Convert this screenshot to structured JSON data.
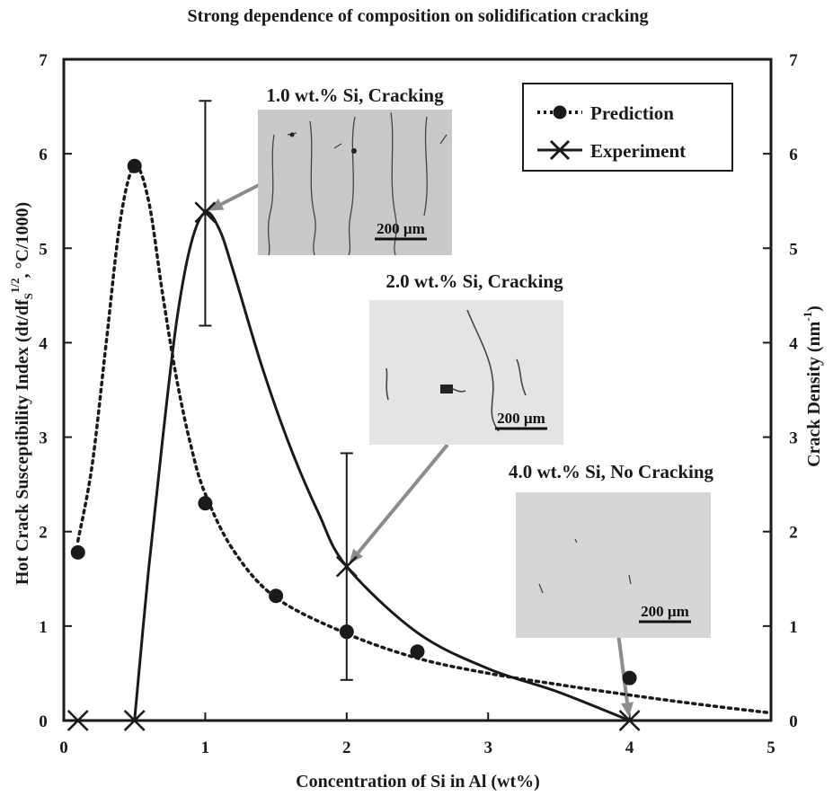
{
  "chart_data": {
    "type": "line",
    "title": "Strong dependence of composition on solidification cracking",
    "xlabel": "Concentration of Si in Al (wt%)",
    "ylabel_left": "Hot Crack Susceptibility Index (dt/df",
    "ylabel_left_sub": "S",
    "ylabel_left_sup": "1/2",
    "ylabel_left_tail": ", °C/1000)",
    "ylabel_right": "Crack Density (nm",
    "ylabel_right_sup": "-1",
    "ylabel_right_tail": ")",
    "xlim": [
      0,
      5
    ],
    "ylim": [
      0,
      7
    ],
    "y2lim": [
      0,
      7
    ],
    "x_ticks": [
      "0",
      "1",
      "2",
      "3",
      "4",
      "5"
    ],
    "y_ticks": [
      "0",
      "1",
      "2",
      "3",
      "4",
      "5",
      "6",
      "7"
    ],
    "y2_ticks": [
      "0",
      "1",
      "2",
      "3",
      "4",
      "5",
      "6",
      "7"
    ],
    "legend_position": "top-right",
    "series": [
      {
        "name": "Prediction",
        "style": "dotted",
        "marker": "circle",
        "axis": "left",
        "points": [
          {
            "x": 0.1,
            "y": 1.78
          },
          {
            "x": 0.5,
            "y": 5.87
          },
          {
            "x": 1.0,
            "y": 2.3
          },
          {
            "x": 1.5,
            "y": 1.32
          },
          {
            "x": 2.0,
            "y": 0.94
          },
          {
            "x": 2.5,
            "y": 0.73
          },
          {
            "x": 4.0,
            "y": 0.45
          }
        ],
        "curve": [
          {
            "x": 0.1,
            "y": 1.9
          },
          {
            "x": 0.2,
            "y": 2.7
          },
          {
            "x": 0.3,
            "y": 4.0
          },
          {
            "x": 0.4,
            "y": 5.3
          },
          {
            "x": 0.5,
            "y": 5.87
          },
          {
            "x": 0.6,
            "y": 5.5
          },
          {
            "x": 0.7,
            "y": 4.5
          },
          {
            "x": 0.8,
            "y": 3.6
          },
          {
            "x": 0.9,
            "y": 2.9
          },
          {
            "x": 1.0,
            "y": 2.4
          },
          {
            "x": 1.2,
            "y": 1.8
          },
          {
            "x": 1.5,
            "y": 1.3
          },
          {
            "x": 2.0,
            "y": 0.92
          },
          {
            "x": 2.5,
            "y": 0.66
          },
          {
            "x": 3.0,
            "y": 0.5
          },
          {
            "x": 3.5,
            "y": 0.38
          },
          {
            "x": 4.0,
            "y": 0.27
          },
          {
            "x": 4.5,
            "y": 0.17
          },
          {
            "x": 5.0,
            "y": 0.08
          }
        ]
      },
      {
        "name": "Experiment",
        "style": "solid",
        "marker": "x",
        "axis": "right",
        "points": [
          {
            "x": 0.1,
            "y": 0,
            "err": null
          },
          {
            "x": 0.5,
            "y": 0,
            "err": null
          },
          {
            "x": 1.0,
            "y": 5.38,
            "err_low": 4.18,
            "err_high": 6.56
          },
          {
            "x": 2.0,
            "y": 1.63,
            "err_low": 0.43,
            "err_high": 2.83
          },
          {
            "x": 4.0,
            "y": 0,
            "err": null
          }
        ],
        "curve": [
          {
            "x": 0.5,
            "y": 0
          },
          {
            "x": 0.6,
            "y": 1.6
          },
          {
            "x": 0.7,
            "y": 3.0
          },
          {
            "x": 0.8,
            "y": 4.25
          },
          {
            "x": 0.9,
            "y": 5.05
          },
          {
            "x": 1.0,
            "y": 5.38
          },
          {
            "x": 1.1,
            "y": 5.2
          },
          {
            "x": 1.2,
            "y": 4.75
          },
          {
            "x": 1.4,
            "y": 3.75
          },
          {
            "x": 1.6,
            "y": 2.9
          },
          {
            "x": 1.8,
            "y": 2.2
          },
          {
            "x": 2.0,
            "y": 1.63
          },
          {
            "x": 2.5,
            "y": 0.93
          },
          {
            "x": 3.0,
            "y": 0.55
          },
          {
            "x": 3.5,
            "y": 0.3
          },
          {
            "x": 4.0,
            "y": 0.0
          }
        ]
      }
    ],
    "insets": [
      {
        "caption": "1.0 wt.% Si, Cracking",
        "scale_label": "200 µm",
        "points_to": {
          "x": 1.0,
          "y": 5.38
        }
      },
      {
        "caption": "2.0 wt.% Si, Cracking",
        "scale_label": "200 µm",
        "points_to": {
          "x": 2.0,
          "y": 1.63
        }
      },
      {
        "caption": "4.0 wt.% Si, No Cracking",
        "scale_label": "200 µm",
        "points_to": {
          "x": 4.0,
          "y": 0.0
        }
      }
    ],
    "colors": {
      "line": "#1a1a1a",
      "arrow": "#8c8c8c",
      "micrograph_bg": "#d4d4d4"
    }
  }
}
